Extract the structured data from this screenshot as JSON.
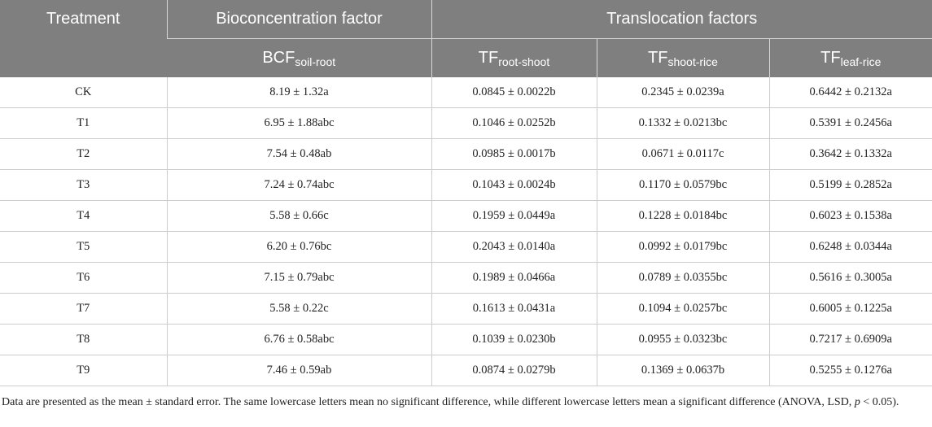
{
  "table": {
    "header": {
      "treatment": "Treatment",
      "bcf_group": "Bioconcentration factor",
      "tf_group": "Translocation factors",
      "columns": [
        {
          "main": "BCF",
          "sub": "soil-root"
        },
        {
          "main": "TF",
          "sub": "root-shoot"
        },
        {
          "main": "TF",
          "sub": "shoot-rice"
        },
        {
          "main": "TF",
          "sub": "leaf-rice"
        }
      ]
    },
    "rows": [
      [
        "CK",
        "8.19 ± 1.32a",
        "0.0845 ± 0.0022b",
        "0.2345 ± 0.0239a",
        "0.6442 ± 0.2132a"
      ],
      [
        "T1",
        "6.95 ± 1.88abc",
        "0.1046 ± 0.0252b",
        "0.1332 ± 0.0213bc",
        "0.5391 ± 0.2456a"
      ],
      [
        "T2",
        "7.54 ± 0.48ab",
        "0.0985 ± 0.0017b",
        "0.0671 ± 0.0117c",
        "0.3642 ± 0.1332a"
      ],
      [
        "T3",
        "7.24 ± 0.74abc",
        "0.1043 ± 0.0024b",
        "0.1170 ± 0.0579bc",
        "0.5199 ± 0.2852a"
      ],
      [
        "T4",
        "5.58 ± 0.66c",
        "0.1959 ± 0.0449a",
        "0.1228 ± 0.0184bc",
        "0.6023 ± 0.1538a"
      ],
      [
        "T5",
        "6.20 ± 0.76bc",
        "0.2043 ± 0.0140a",
        "0.0992 ± 0.0179bc",
        "0.6248 ± 0.0344a"
      ],
      [
        "T6",
        "7.15 ± 0.79abc",
        "0.1989 ± 0.0466a",
        "0.0789 ± 0.0355bc",
        "0.5616 ± 0.3005a"
      ],
      [
        "T7",
        "5.58 ± 0.22c",
        "0.1613 ± 0.0431a",
        "0.1094 ± 0.0257bc",
        "0.6005 ± 0.1225a"
      ],
      [
        "T8",
        "6.76 ± 0.58abc",
        "0.1039 ± 0.0230b",
        "0.0955 ± 0.0323bc",
        "0.7217 ± 0.6909a"
      ],
      [
        "T9",
        "7.46 ± 0.59ab",
        "0.0874 ± 0.0279b",
        "0.1369 ± 0.0637b",
        "0.5255 ± 0.1276a"
      ]
    ]
  },
  "footnote": {
    "parts": [
      "Data are presented as the mean ± standard error. The same lowercase letters mean no significant difference, while different lowercase letters mean a significant difference (ANOVA, LSD, ",
      "p",
      " < 0.05)."
    ]
  }
}
